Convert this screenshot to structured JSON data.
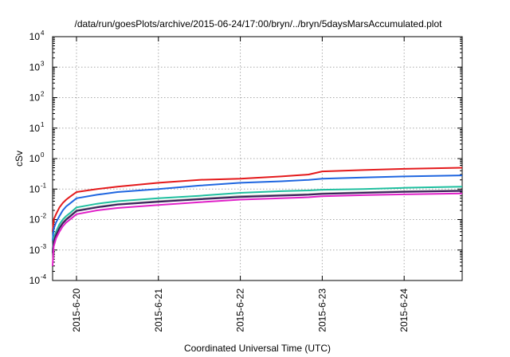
{
  "chart_data": {
    "type": "line",
    "title": "/data/run/goesPlots/archive/2015-06-24/17:00/bryn/../bryn/5daysMarsAccumulated.plot",
    "xlabel": "Coordinated Universal Time (UTC)",
    "ylabel": "cSv",
    "y_scale": "log",
    "ylim": [
      0.0001,
      10000
    ],
    "y_ticks": [
      {
        "value": 0.0001,
        "mantissa": "10",
        "exp": "-4"
      },
      {
        "value": 0.001,
        "mantissa": "10",
        "exp": "-3"
      },
      {
        "value": 0.01,
        "mantissa": "10",
        "exp": "-2"
      },
      {
        "value": 0.1,
        "mantissa": "10",
        "exp": "-1"
      },
      {
        "value": 1,
        "mantissa": "10",
        "exp": "0"
      },
      {
        "value": 10,
        "mantissa": "10",
        "exp": "1"
      },
      {
        "value": 100,
        "mantissa": "10",
        "exp": "2"
      },
      {
        "value": 1000,
        "mantissa": "10",
        "exp": "3"
      },
      {
        "value": 10000,
        "mantissa": "10",
        "exp": "4"
      }
    ],
    "xlim": [
      "2015-06-19 17:00",
      "2015-06-24 17:00"
    ],
    "x_ticks": [
      {
        "value": "2015-06-20 00:00",
        "label": "2015-6-20"
      },
      {
        "value": "2015-06-21 00:00",
        "label": "2015-6-21"
      },
      {
        "value": "2015-06-22 00:00",
        "label": "2015-6-22"
      },
      {
        "value": "2015-06-23 00:00",
        "label": "2015-6-23"
      },
      {
        "value": "2015-06-24 00:00",
        "label": "2015-6-24"
      }
    ],
    "grid": true,
    "legend": "none",
    "x": [
      "2015-06-19 17:00",
      "2015-06-19 17:20",
      "2015-06-19 18:00",
      "2015-06-19 19:00",
      "2015-06-19 20:00",
      "2015-06-19 21:00",
      "2015-06-19 22:00",
      "2015-06-20 00:00",
      "2015-06-20 06:00",
      "2015-06-20 12:00",
      "2015-06-21 00:00",
      "2015-06-21 12:00",
      "2015-06-22 00:00",
      "2015-06-22 12:00",
      "2015-06-22 20:00",
      "2015-06-23 00:00",
      "2015-06-23 12:00",
      "2015-06-24 00:00",
      "2015-06-24 17:00"
    ],
    "series": [
      {
        "color": "#e41a1c",
        "values": [
          0.004,
          0.01,
          0.015,
          0.025,
          0.035,
          0.045,
          0.055,
          0.08,
          0.1,
          0.12,
          0.16,
          0.2,
          0.22,
          0.26,
          0.3,
          0.38,
          0.42,
          0.46,
          0.5
        ]
      },
      {
        "color": "#1f66e0",
        "values": [
          0.002,
          0.005,
          0.008,
          0.013,
          0.02,
          0.027,
          0.033,
          0.05,
          0.065,
          0.08,
          0.1,
          0.13,
          0.16,
          0.18,
          0.2,
          0.22,
          0.24,
          0.26,
          0.28
        ]
      },
      {
        "color": "#1fbf9f",
        "values": [
          0.001,
          0.0025,
          0.004,
          0.007,
          0.01,
          0.013,
          0.016,
          0.025,
          0.033,
          0.04,
          0.05,
          0.06,
          0.075,
          0.085,
          0.09,
          0.095,
          0.1,
          0.11,
          0.12
        ]
      },
      {
        "color": "#8a8a8a",
        "values": [
          0.0009,
          0.002,
          0.0033,
          0.0055,
          0.008,
          0.0105,
          0.013,
          0.02,
          0.026,
          0.032,
          0.04,
          0.048,
          0.058,
          0.064,
          0.068,
          0.072,
          0.078,
          0.084,
          0.09
        ]
      },
      {
        "color": "#3a1f5c",
        "values": [
          0.0008,
          0.0019,
          0.0031,
          0.0052,
          0.0075,
          0.0099,
          0.0122,
          0.019,
          0.025,
          0.031,
          0.038,
          0.046,
          0.055,
          0.061,
          0.065,
          0.069,
          0.075,
          0.081,
          0.087
        ]
      },
      {
        "color": "#e020c8",
        "values": [
          0.0003,
          0.0013,
          0.0024,
          0.004,
          0.006,
          0.008,
          0.0098,
          0.015,
          0.02,
          0.024,
          0.03,
          0.037,
          0.045,
          0.05,
          0.054,
          0.058,
          0.063,
          0.067,
          0.072
        ]
      }
    ]
  }
}
